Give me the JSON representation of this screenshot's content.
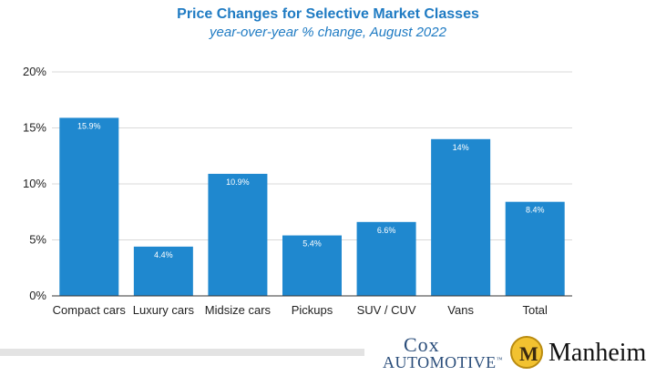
{
  "chart_data": {
    "type": "bar",
    "title": "Price Changes for Selective Market Classes",
    "subtitle": "year-over-year % change, August 2022",
    "categories": [
      "Compact cars",
      "Luxury cars",
      "Midsize cars",
      "Pickups",
      "SUV / CUV",
      "Vans",
      "Total"
    ],
    "values": [
      15.9,
      4.4,
      10.9,
      5.4,
      6.6,
      14,
      8.4
    ],
    "data_labels": [
      "15.9%",
      "4.4%",
      "10.9%",
      "5.4%",
      "6.6%",
      "14%",
      "8.4%"
    ],
    "yticks": [
      0,
      5,
      10,
      15,
      20
    ],
    "ytick_labels": [
      "0%",
      "5%",
      "10%",
      "15%",
      "20%"
    ],
    "ylim": [
      0,
      20
    ],
    "xlabel": "",
    "ylabel": "",
    "grid": true,
    "legend": "none",
    "bar_color": "#1f88cf",
    "title_color": "#1f7bc3"
  },
  "footer": {
    "cox_logo_top": "Cox",
    "cox_logo_bottom": "AUTOMOTIVE",
    "cox_tm": "™",
    "manheim_logo_letter": "M",
    "manheim_logo_word": "Manheim"
  }
}
